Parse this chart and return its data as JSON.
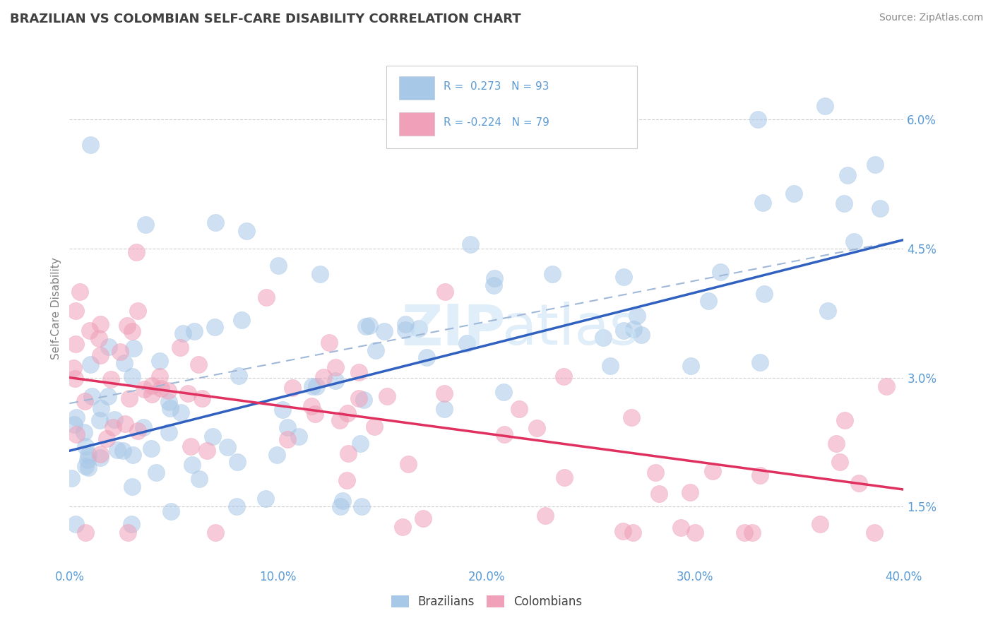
{
  "title": "BRAZILIAN VS COLOMBIAN SELF-CARE DISABILITY CORRELATION CHART",
  "source": "Source: ZipAtlas.com",
  "ylabel": "Self-Care Disability",
  "xlim": [
    0.0,
    0.4
  ],
  "ylim": [
    0.008,
    0.068
  ],
  "yticks": [
    0.015,
    0.03,
    0.045,
    0.06
  ],
  "ytick_labels": [
    "1.5%",
    "3.0%",
    "4.5%",
    "6.0%"
  ],
  "xticks": [
    0.0,
    0.1,
    0.2,
    0.3,
    0.4
  ],
  "xtick_labels": [
    "0.0%",
    "10.0%",
    "20.0%",
    "30.0%",
    "40.0%"
  ],
  "brazilian_color": "#a8c8e8",
  "colombian_color": "#f0a0b8",
  "trend_blue": "#3060c0",
  "trend_pink": "#e03060",
  "dashed_color": "#a0b8d8",
  "legend_R_blue": "0.273",
  "legend_N_blue": "93",
  "legend_R_pink": "-0.224",
  "legend_N_pink": "79",
  "title_color": "#404040",
  "axis_color": "#5b9bd5",
  "background_color": "#ffffff",
  "grid_color": "#bbbbbb",
  "blue_trend_x0": 0.0,
  "blue_trend_y0": 0.0215,
  "blue_trend_x1": 0.4,
  "blue_trend_y1": 0.046,
  "dash_trend_x0": 0.0,
  "dash_trend_y0": 0.027,
  "dash_trend_x1": 0.4,
  "dash_trend_y1": 0.046,
  "pink_trend_x0": 0.0,
  "pink_trend_y0": 0.03,
  "pink_trend_x1": 0.4,
  "pink_trend_y1": 0.017
}
